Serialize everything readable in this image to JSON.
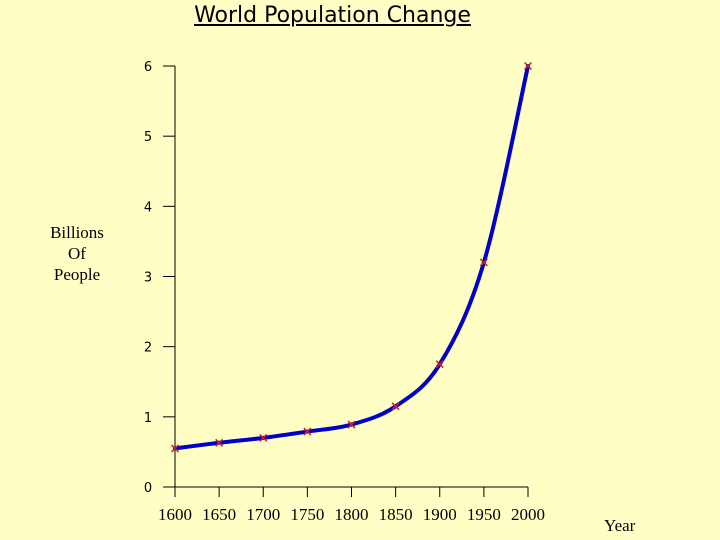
{
  "chart_data": {
    "type": "line",
    "title": "World Population Change",
    "xlabel": "Year",
    "ylabel": [
      "Billions",
      "Of",
      "People"
    ],
    "x_ticks": [
      "1600",
      "1650",
      "1700",
      "1750",
      "1800",
      "1850",
      "1900",
      "1950",
      "2000"
    ],
    "y_ticks": [
      "0",
      "1",
      "2",
      "3",
      "4",
      "5",
      "6"
    ],
    "xlim": [
      1600,
      2000
    ],
    "ylim": [
      0,
      6
    ],
    "grid": false,
    "series": [
      {
        "marker": "x",
        "x": [
          1600,
          1650,
          1700,
          1750,
          1800,
          1850,
          1900,
          1950,
          2000
        ],
        "y": [
          0.55,
          0.63,
          0.7,
          0.79,
          0.89,
          1.15,
          1.75,
          3.2,
          6.0
        ]
      }
    ],
    "curve_color": "#0000cc",
    "marker_color": "#cc2222"
  }
}
